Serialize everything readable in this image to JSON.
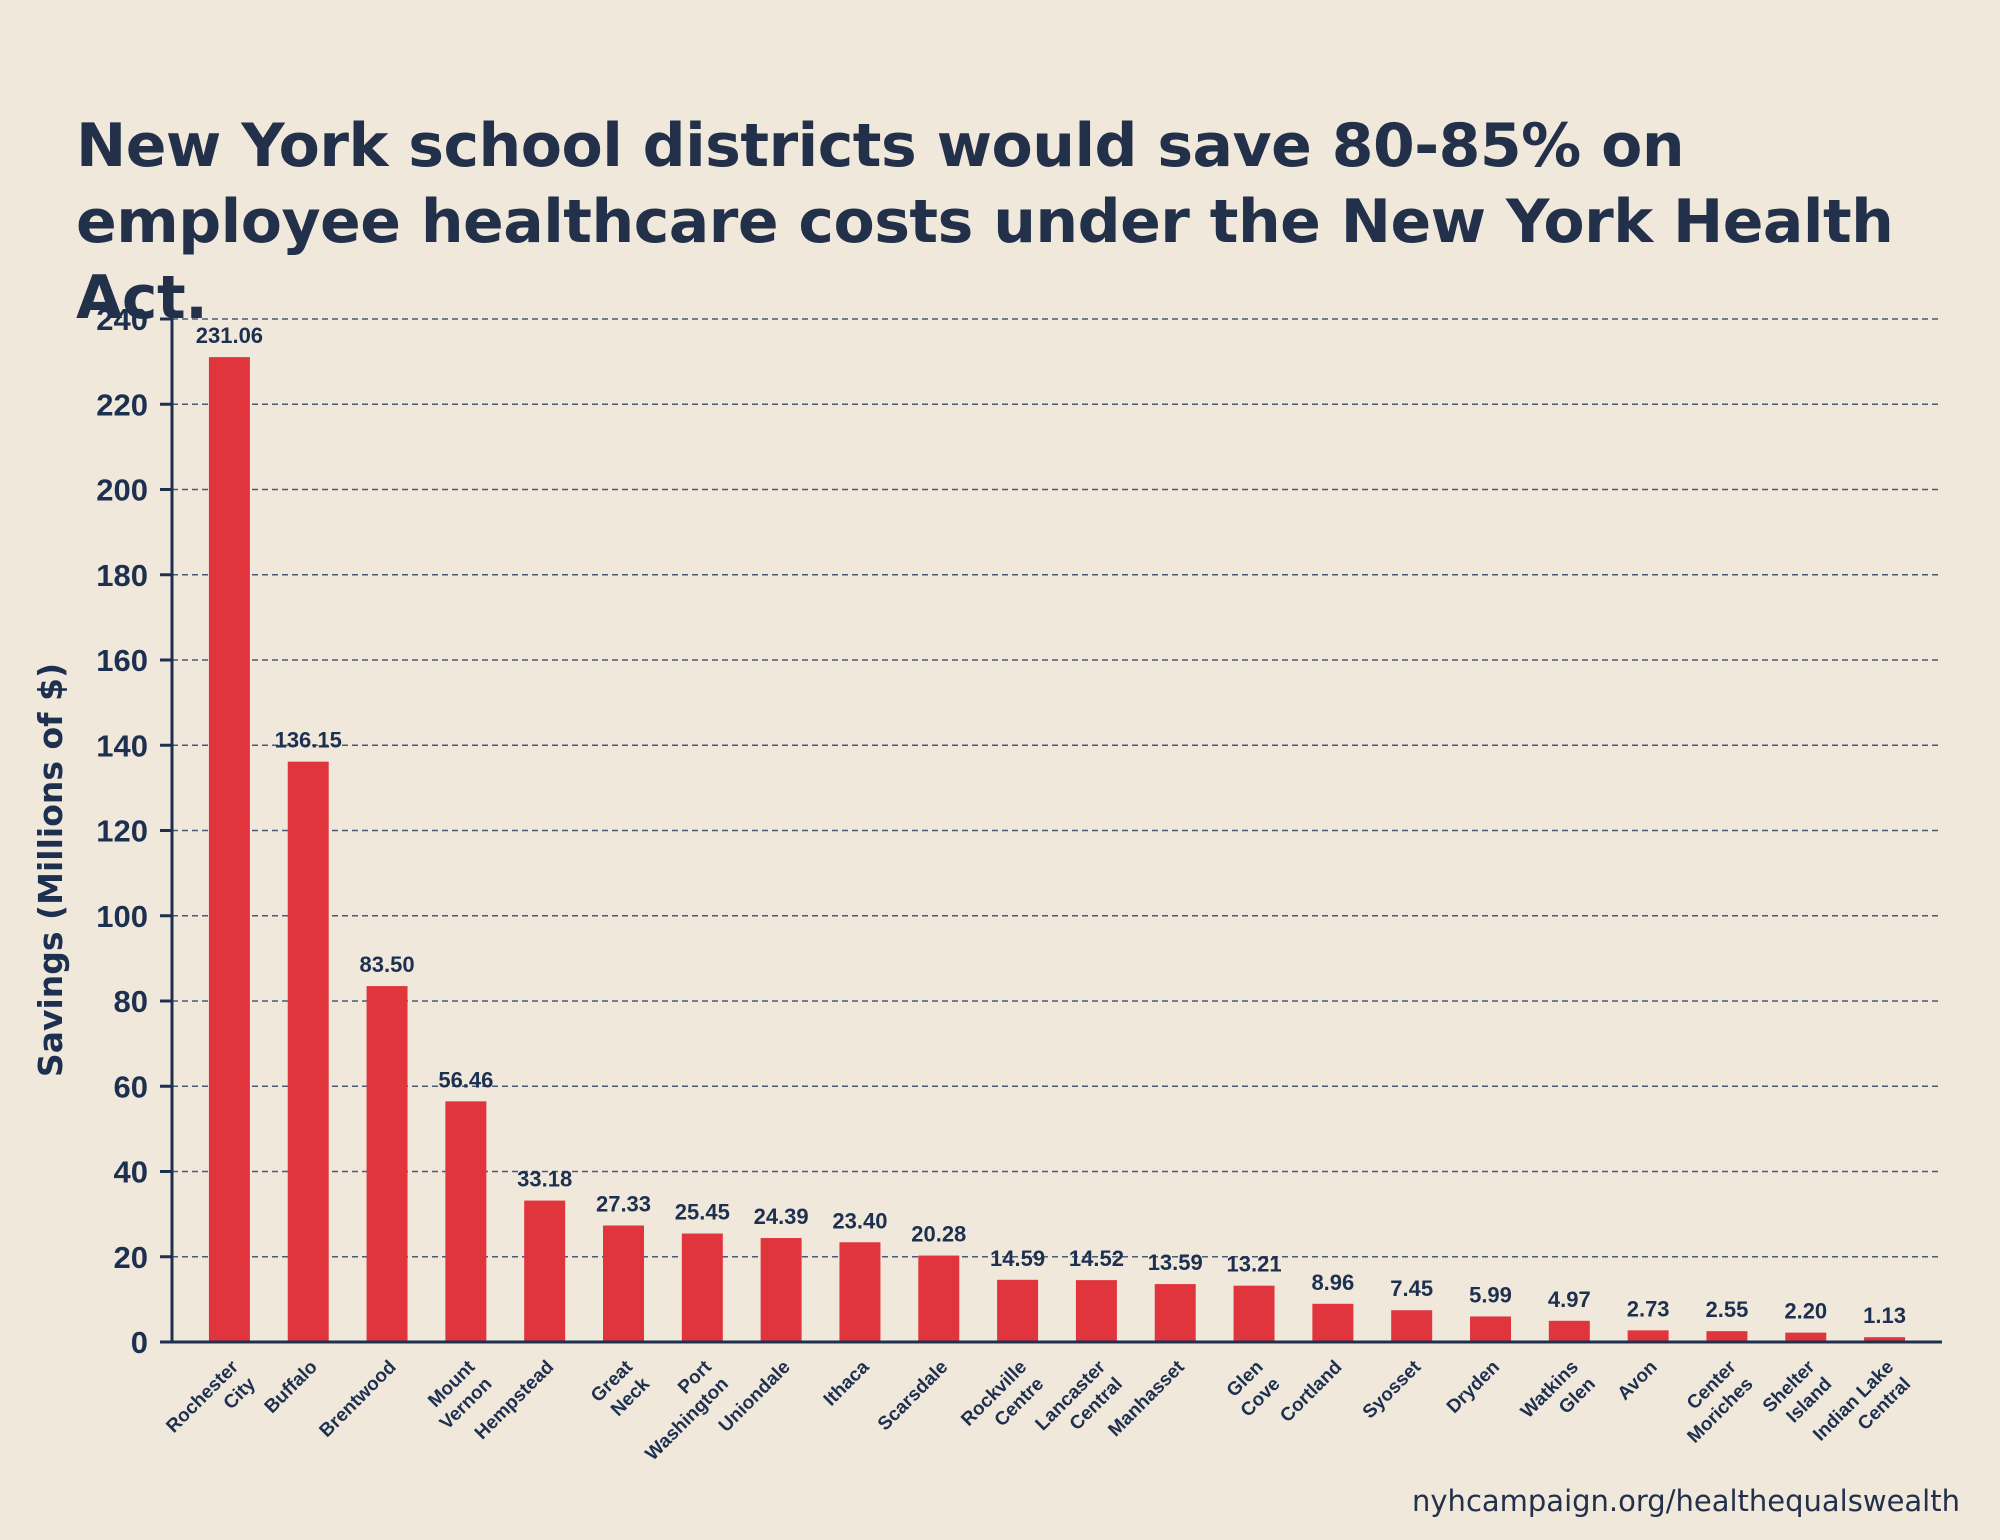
{
  "chart_data": {
    "type": "bar",
    "title": "New York school districts would save 80-85% on employee healthcare costs under the New York Health Act.",
    "ylabel": "Savings (Millions of $)",
    "xlabel": "",
    "ylim": [
      0,
      240
    ],
    "yticks": [
      0,
      20,
      40,
      60,
      80,
      100,
      120,
      140,
      160,
      180,
      200,
      220,
      240
    ],
    "grid": true,
    "bar_color": "#e0353d",
    "categories": [
      [
        "Rochester",
        "City"
      ],
      [
        "Buffalo"
      ],
      [
        "Brentwood"
      ],
      [
        "Mount",
        "Vernon"
      ],
      [
        "Hempstead"
      ],
      [
        "Great",
        "Neck"
      ],
      [
        "Port",
        "Washington"
      ],
      [
        "Uniondale"
      ],
      [
        "Ithaca"
      ],
      [
        "Scarsdale"
      ],
      [
        "Rockville",
        "Centre"
      ],
      [
        "Lancaster",
        "Central"
      ],
      [
        "Manhasset"
      ],
      [
        "Glen",
        "Cove"
      ],
      [
        "Cortland"
      ],
      [
        "Syosset"
      ],
      [
        "Dryden"
      ],
      [
        "Watkins",
        "Glen"
      ],
      [
        "Avon"
      ],
      [
        "Center",
        "Moriches"
      ],
      [
        "Shelter",
        "Island"
      ],
      [
        "Indian Lake",
        "Central"
      ]
    ],
    "values": [
      231.06,
      136.15,
      83.5,
      56.46,
      33.18,
      27.33,
      25.45,
      24.39,
      23.4,
      20.28,
      14.59,
      14.52,
      13.59,
      13.21,
      8.96,
      7.45,
      5.99,
      4.97,
      2.73,
      2.55,
      2.2,
      1.13
    ],
    "value_labels": [
      "231.06",
      "136.15",
      "83.50",
      "56.46",
      "33.18",
      "27.33",
      "25.45",
      "24.39",
      "23.40",
      "20.28",
      "14.59",
      "14.52",
      "13.59",
      "13.21",
      "8.96",
      "7.45",
      "5.99",
      "4.97",
      "2.73",
      "2.55",
      "2.20",
      "1.13"
    ]
  },
  "footer": {
    "source": "nyhcampaign.org/healthequalswealth"
  }
}
